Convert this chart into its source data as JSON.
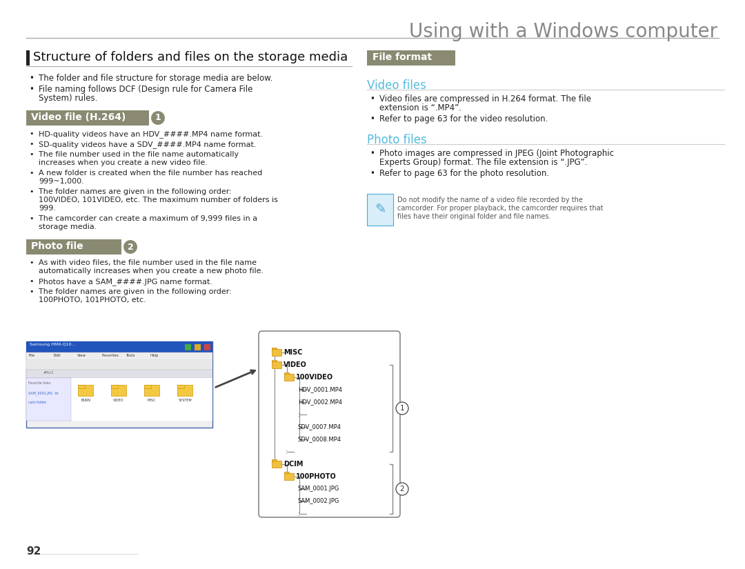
{
  "title": "Using with a Windows computer",
  "title_color": "#888888",
  "bg_color": "#ffffff",
  "left_section_title": "Structure of folders and files on the storage media",
  "left_section_title_color": "#222222",
  "left_accent_bar_color": "#333333",
  "intro_bullets": [
    "The folder and file structure for storage media are below.",
    "File naming follows DCF (Design rule for Camera File System) rules."
  ],
  "video_file_header": "Video file (H.264) ",
  "video_file_circle_num": "1",
  "video_file_header_bg": "#8a8a72",
  "video_file_header_color": "#ffffff",
  "video_bullets": [
    "HD-quality videos have an HDV_####.MP4 name format.",
    "SD-quality videos have a SDV_####.MP4 name format.",
    "The file number used in the file name automatically increases when you create a new video file.",
    "A new folder is created when the file number has reached 999~1,000.",
    "The folder names are given in the following order: 100VIDEO, 101VIDEO, etc. The maximum number of folders  is 999.",
    "The camcorder can create a maximum of 9,999 files in a storage media."
  ],
  "photo_file_header": "Photo file ",
  "photo_file_circle_num": "2",
  "photo_file_header_bg": "#8a8a72",
  "photo_file_header_color": "#ffffff",
  "photo_bullets": [
    "As with video files, the file number used in the file name automatically increases when you create a new photo file.",
    "Photos have a SAM_####.JPG name format.",
    "The folder names are given in the following order: 100PHOTO, 101PHOTO, etc."
  ],
  "right_section_title": "File format",
  "right_section_title_bg": "#8a8a72",
  "right_section_title_color": "#ffffff",
  "video_files_header": "Video files",
  "video_files_header_color": "#55bbdd",
  "video_files_bullets": [
    "Video files are compressed in H.264 format. The file extension is “.MP4”.",
    "Refer to page 63 for the video resolution."
  ],
  "photo_files_header": "Photo files",
  "photo_files_header_color": "#55bbdd",
  "photo_files_bullets": [
    "Photo images are compressed in JPEG (Joint Photographic Experts Group) format. The file extension is “.JPG”.",
    "Refer to page 63 for the photo resolution."
  ],
  "note_text": "Do not modify the name of a video file recorded by the camcorder. For proper playback, the camcorder requires that files have their original folder and file names.",
  "note_icon_color": "#4da6d9",
  "note_text_color": "#555555",
  "folder_tree_items": [
    {
      "label": "MISC",
      "level": 0,
      "type": "folder"
    },
    {
      "label": "VIDEO",
      "level": 0,
      "type": "folder"
    },
    {
      "label": "100VIDEO",
      "level": 1,
      "type": "folder"
    },
    {
      "label": "HDV_0001.MP4",
      "level": 2,
      "type": "file"
    },
    {
      "label": "HDV_0002.MP4",
      "level": 2,
      "type": "file"
    },
    {
      "label": "...",
      "level": 2,
      "type": "dots"
    },
    {
      "label": "SDV_0007.MP4",
      "level": 2,
      "type": "file"
    },
    {
      "label": "SDV_0008.MP4",
      "level": 2,
      "type": "file"
    },
    {
      "label": "...",
      "level": 1,
      "type": "dots"
    },
    {
      "label": "DCIM",
      "level": 0,
      "type": "folder"
    },
    {
      "label": "100PHOTO",
      "level": 1,
      "type": "folder"
    },
    {
      "label": "SAM_0001.JPG",
      "level": 2,
      "type": "file"
    },
    {
      "label": "SAM_0002.JPG",
      "level": 2,
      "type": "file"
    },
    {
      "label": "...",
      "level": 2,
      "type": "dots"
    }
  ],
  "page_number": "92",
  "text_color": "#222222",
  "bullet_color": "#222222",
  "body_fontsize": 8.5
}
